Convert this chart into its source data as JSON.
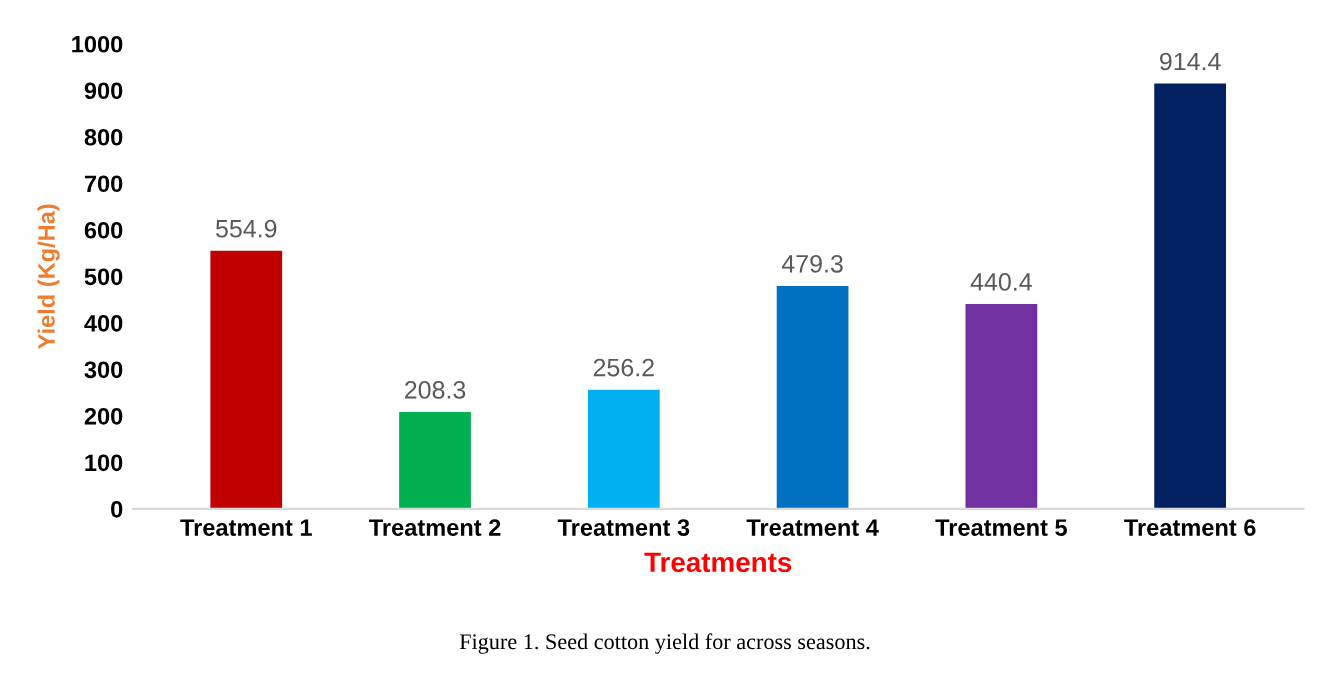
{
  "chart_data": {
    "type": "bar",
    "categories": [
      "Treatment 1",
      "Treatment 2",
      "Treatment 3",
      "Treatment 4",
      "Treatment 5",
      "Treatment 6"
    ],
    "values": [
      554.9,
      208.3,
      256.2,
      479.3,
      440.4,
      914.4
    ],
    "colors": [
      "#c00000",
      "#00b050",
      "#00b0f0",
      "#0070c0",
      "#7030a0",
      "#002060"
    ],
    "xlabel": "Treatments",
    "ylabel": "Yield (Kg/Ha)",
    "ylim": [
      0,
      1000
    ],
    "yticks": [
      0,
      100,
      200,
      300,
      400,
      500,
      600,
      700,
      800,
      900,
      1000
    ],
    "data_labels": true,
    "grid": false,
    "legend": false,
    "annotations": [
      "Figure 1. Seed cotton yield for across seasons."
    ]
  }
}
